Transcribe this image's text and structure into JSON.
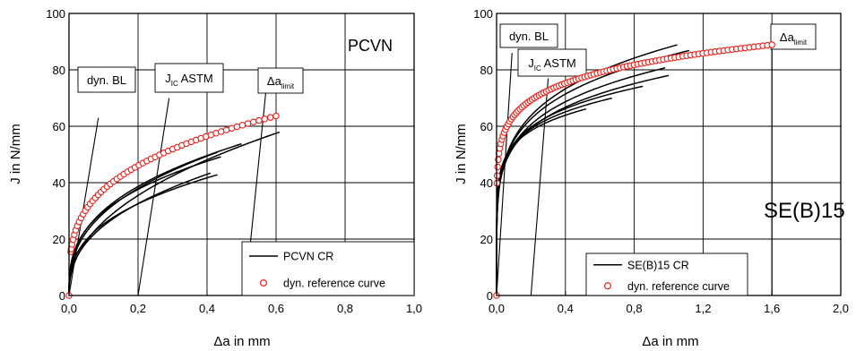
{
  "chart_data": [
    {
      "type": "line",
      "title": "PCVN",
      "xlabel": "Δa  in  mm",
      "ylabel": "J  in  N/mm",
      "xlim": [
        0,
        1.0
      ],
      "ylim": [
        0,
        100
      ],
      "xticks": [
        0,
        0.2,
        0.4,
        0.6,
        0.8,
        1.0
      ],
      "xtick_labels": [
        "0,0",
        "0,2",
        "0,4",
        "0,6",
        "0,8",
        "1,0"
      ],
      "yticks": [
        0,
        20,
        40,
        60,
        80,
        100
      ],
      "ytick_labels": [
        "0",
        "20",
        "40",
        "60",
        "80",
        "100"
      ],
      "grid": true,
      "legend_position": "bottom-right",
      "legend": [
        {
          "label": "PCVN CR",
          "marker": "line"
        },
        {
          "label": "dyn. reference curve",
          "marker": "open-circle-red"
        }
      ],
      "annotations": [
        {
          "id": "bl",
          "label": "dyn. BL",
          "line": [
            [
              0.0,
              0.0
            ],
            [
              0.085,
              63.0
            ]
          ]
        },
        {
          "id": "jic",
          "label_main": "J",
          "label_sub": "IC",
          "label_after": " ASTM",
          "line": [
            [
              0.2,
              0.0
            ],
            [
              0.29,
              70.0
            ]
          ]
        },
        {
          "id": "dalim",
          "label_main": "Δa",
          "label_sub": "limit",
          "line": [
            [
              0.51,
              0.0
            ],
            [
              0.57,
              72.0
            ]
          ]
        }
      ],
      "series": [
        {
          "name": "PCVN CR",
          "curves": [
            {
              "coef": 72,
              "p": 0.44,
              "end": 0.61
            },
            {
              "coef": 70,
              "p": 0.38,
              "end": 0.43
            },
            {
              "coef": 69,
              "p": 0.36,
              "end": 0.5
            },
            {
              "coef": 65,
              "p": 0.34,
              "end": 0.44
            },
            {
              "coef": 62,
              "p": 0.4,
              "end": 0.41
            },
            {
              "coef": 58,
              "p": 0.36,
              "end": 0.43
            }
          ]
        },
        {
          "name": "dyn. reference curve",
          "coef": 74,
          "p": 0.295,
          "start": 0.005,
          "end": 0.6,
          "points": 56
        }
      ]
    },
    {
      "type": "line",
      "title": "SE(B)15",
      "xlabel": "Δa  in  mm",
      "ylabel": "J  in  N/mm",
      "xlim": [
        0,
        2.0
      ],
      "ylim": [
        0,
        100
      ],
      "xticks": [
        0,
        0.4,
        0.8,
        1.2,
        1.6,
        2.0
      ],
      "xtick_labels": [
        "0,0",
        "0,4",
        "0,8",
        "1,2",
        "1,6",
        "2,0"
      ],
      "yticks": [
        0,
        20,
        40,
        60,
        80,
        100
      ],
      "ytick_labels": [
        "0",
        "20",
        "40",
        "60",
        "80",
        "100"
      ],
      "grid": true,
      "legend_position": "bottom-right",
      "legend": [
        {
          "label": "SE(B)15 CR",
          "marker": "line"
        },
        {
          "label": "dyn. reference curve",
          "marker": "open-circle-red"
        }
      ],
      "annotations": [
        {
          "id": "bl",
          "label": "dyn. BL",
          "line": [
            [
              0.0,
              0.0
            ],
            [
              0.09,
              86.0
            ]
          ]
        },
        {
          "id": "jic",
          "label_main": "J",
          "label_sub": "IC",
          "label_after": " ASTM",
          "line": [
            [
              0.2,
              0.0
            ],
            [
              0.3,
              77.0
            ]
          ]
        },
        {
          "id": "dalim",
          "label_main": "Δa",
          "label_sub": "limit",
          "line": [
            [
              1.6,
              0.0
            ],
            [
              1.6,
              89.0
            ]
          ]
        }
      ],
      "series": [
        {
          "name": "SE(B)15 CR",
          "curves": [
            {
              "coef": 88,
              "p": 0.2,
              "end": 1.05
            },
            {
              "coef": 85,
              "p": 0.19,
              "end": 1.12
            },
            {
              "coef": 81,
              "p": 0.18,
              "end": 0.98
            },
            {
              "coef": 78,
              "p": 0.17,
              "end": 1.0
            },
            {
              "coef": 76,
              "p": 0.15,
              "end": 0.85
            },
            {
              "coef": 74,
              "p": 0.14,
              "end": 0.67
            },
            {
              "coef": 72,
              "p": 0.13,
              "end": 0.52
            }
          ]
        },
        {
          "name": "dyn. reference curve",
          "coef": 84,
          "p": 0.12,
          "start": 0.002,
          "end": 1.6,
          "points": 95
        }
      ]
    }
  ]
}
